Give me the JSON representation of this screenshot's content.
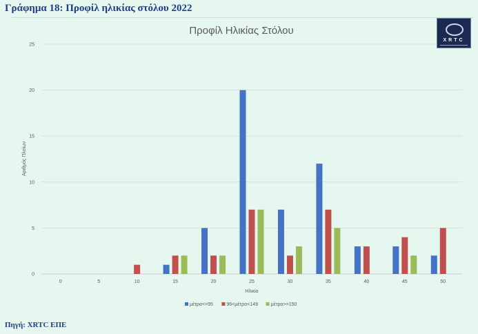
{
  "page": {
    "figure_title": "Γράφημα 18: Προφίλ ηλικίας στόλου 2022",
    "source": "Πηγή: XRTC ΕΠΕ",
    "logo_text": "XRTC"
  },
  "chart_data": {
    "type": "bar",
    "title": "Προφίλ Ηλικίας Στόλου",
    "xlabel": "Ηλικία",
    "ylabel": "Αριθμός Πλοίων",
    "categories": [
      "0",
      "5",
      "10",
      "15",
      "20",
      "25",
      "30",
      "35",
      "40",
      "45",
      "50"
    ],
    "ylim": [
      0,
      25
    ],
    "yticks": [
      0,
      5,
      10,
      15,
      20,
      25
    ],
    "grid": true,
    "legend_position": "bottom",
    "series": [
      {
        "name": "μέτρα<=95",
        "color": "#4472c4",
        "values": [
          0,
          0,
          0,
          1,
          5,
          20,
          7,
          12,
          3,
          3,
          2
        ]
      },
      {
        "name": "96<μέτρα<149",
        "color": "#c0504d",
        "values": [
          0,
          0,
          1,
          2,
          2,
          7,
          2,
          7,
          3,
          4,
          5
        ]
      },
      {
        "name": "μέτρα>=150",
        "color": "#9bbb59",
        "values": [
          0,
          0,
          0,
          2,
          2,
          7,
          3,
          5,
          0,
          2,
          0
        ]
      }
    ]
  }
}
